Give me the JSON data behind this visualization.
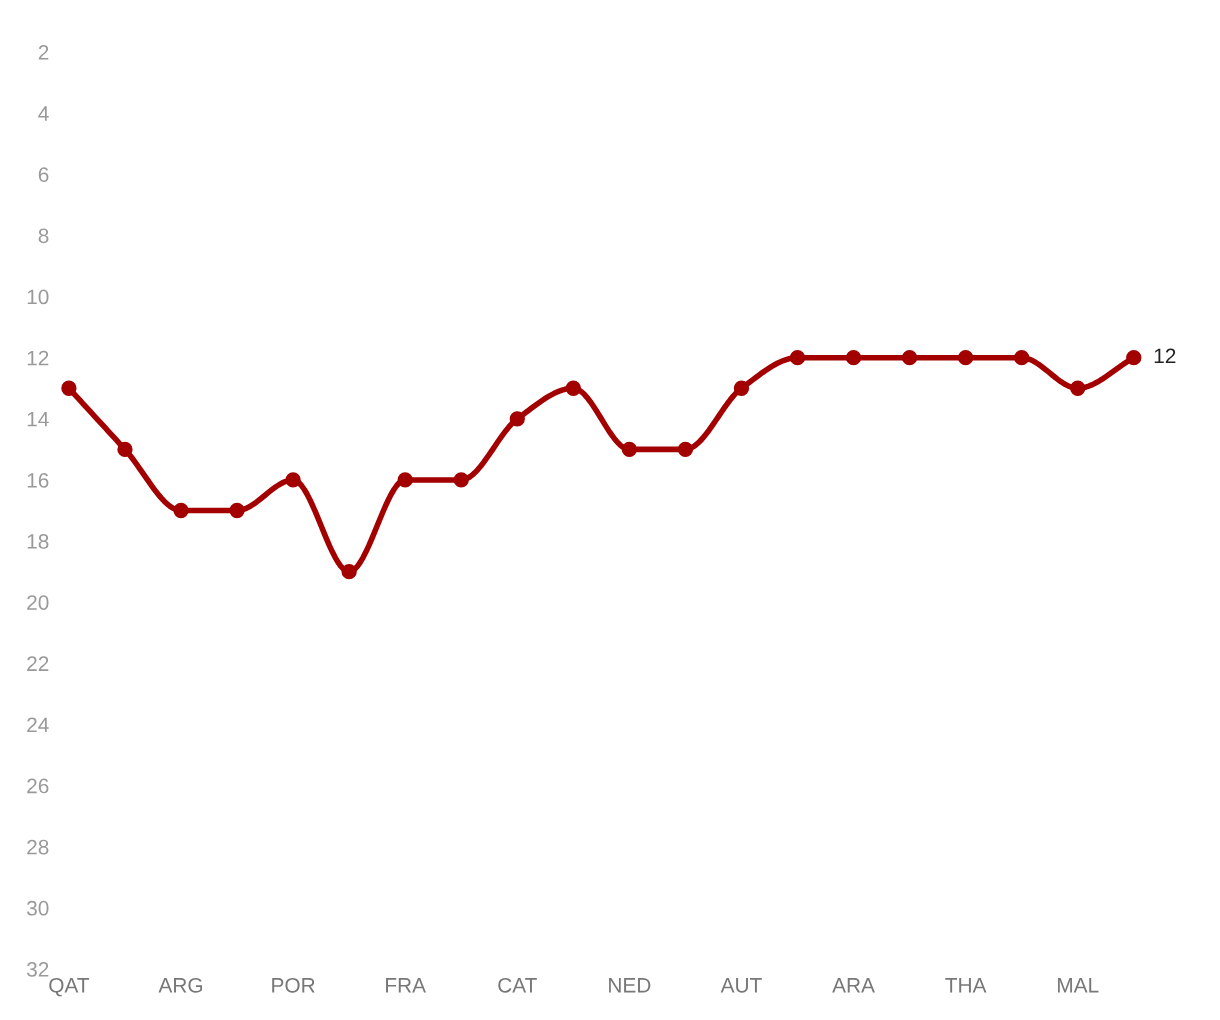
{
  "chart_data": {
    "type": "line",
    "categories": [
      "QAT",
      null,
      "ARG",
      null,
      "POR",
      null,
      "FRA",
      null,
      "CAT",
      null,
      "NED",
      null,
      "AUT",
      null,
      "ARA",
      null,
      "THA",
      null,
      "MAL",
      null
    ],
    "series": [
      {
        "color": "#a30000",
        "values": [
          13,
          15,
          17,
          17,
          16,
          19,
          16,
          16,
          14,
          13,
          15,
          15,
          13,
          12,
          12,
          12,
          12,
          12,
          13,
          12
        ],
        "value_labels": [
          null,
          null,
          null,
          null,
          null,
          null,
          null,
          null,
          null,
          null,
          null,
          null,
          null,
          null,
          null,
          null,
          null,
          null,
          null,
          "12"
        ]
      }
    ],
    "ylim": [
      32,
      2
    ],
    "yticks": [
      2,
      4,
      6,
      8,
      10,
      12,
      14,
      16,
      18,
      20,
      22,
      24,
      26,
      28,
      30,
      32
    ],
    "marker": "circle",
    "line_style": "solid",
    "grid": false,
    "legend": false
  }
}
